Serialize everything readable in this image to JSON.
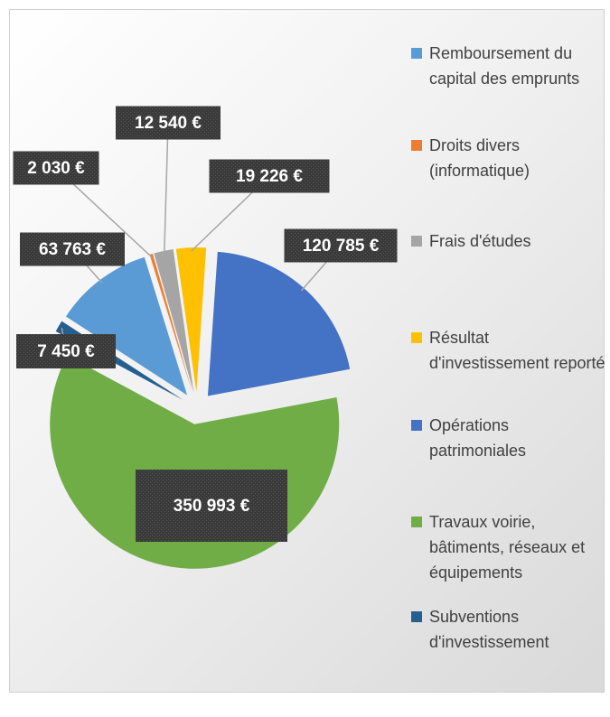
{
  "chart_data": {
    "type": "pie",
    "categories": [
      "Remboursement du capital des emprunts",
      "Droits divers (informatique)",
      "Frais d'études",
      "Résultat d'investissement reporté",
      "Opérations patrimoniales",
      "Travaux voirie, bâtiments, réseaux et équipements",
      "Subventions d'investissement"
    ],
    "values": [
      63763,
      2030,
      12540,
      19226,
      120785,
      350993,
      7450
    ],
    "value_labels": [
      "63 763 €",
      "2 030 €",
      "12 540 €",
      "19 226 €",
      "120 785 €",
      "350 993 €",
      "7 450 €"
    ],
    "colors": [
      "#5b9bd5",
      "#ed7d31",
      "#a5a5a5",
      "#ffc000",
      "#4472c4",
      "#70ad47",
      "#255e91"
    ],
    "legend": "right"
  }
}
